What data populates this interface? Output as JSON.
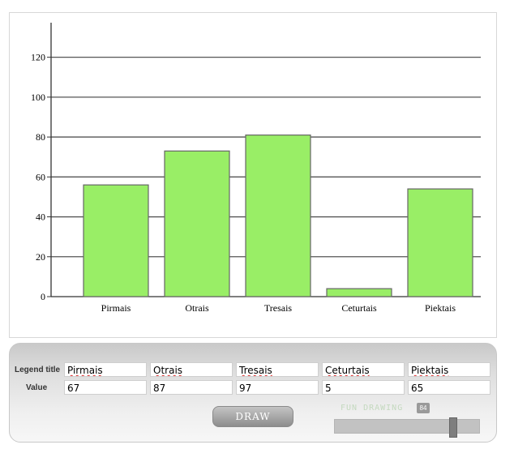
{
  "chart_data": {
    "type": "bar",
    "categories": [
      "Pirmais",
      "Otrais",
      "Tresais",
      "Ceturtais",
      "Piektais"
    ],
    "values": [
      56,
      73,
      81,
      4,
      54
    ],
    "ylim": [
      0,
      130
    ],
    "yticks": [
      0,
      20,
      40,
      60,
      80,
      100,
      120
    ],
    "grid": true,
    "colors": {
      "bar_fill": "#99ee66",
      "bar_stroke": "#666666",
      "grid": "#555555"
    }
  },
  "table": {
    "legend_label": "Legend title",
    "value_label": "Value",
    "legend_titles": [
      "Pirmais",
      "Otrais",
      "Tresais",
      "Ceturtais",
      "Piektais"
    ],
    "values": [
      "67",
      "87",
      "97",
      "5",
      "65"
    ]
  },
  "controls": {
    "draw_label": "DRAW",
    "fun_label": "FUN DRAWING",
    "fun_value": "84",
    "fun_fraction": 0.84
  }
}
